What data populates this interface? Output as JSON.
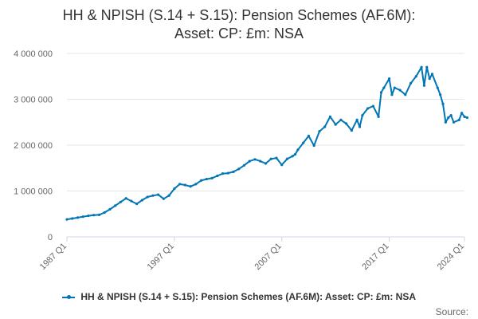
{
  "chart_data": {
    "type": "line",
    "title_line1": "HH & NPISH (S.14 + S.15): Pension Schemes (AF.6M):",
    "title_line2": "Asset: CP: £m: NSA",
    "legend_label": "HH & NPISH (S.14 + S.15): Pension Schemes (AF.6M): Asset: CP: £m: NSA",
    "source_label": "Source:",
    "ylim": [
      0,
      4000000
    ],
    "y_ticks": [
      {
        "value": 0,
        "label": "0"
      },
      {
        "value": 1000000,
        "label": "1 000 000"
      },
      {
        "value": 2000000,
        "label": "2 000 000"
      },
      {
        "value": 3000000,
        "label": "3 000 000"
      },
      {
        "value": 4000000,
        "label": "4 000 000"
      }
    ],
    "x_ticks": [
      {
        "value": 1987.0,
        "label": "1987 Q1"
      },
      {
        "value": 1997.0,
        "label": "1997 Q1"
      },
      {
        "value": 2007.0,
        "label": "2007 Q1"
      },
      {
        "value": 2017.0,
        "label": "2017 Q1"
      },
      {
        "value": 2024.0,
        "label": "2024 Q1"
      }
    ],
    "xlim": [
      1987.0,
      2024.0
    ],
    "grid": true,
    "legend_position": "bottom",
    "color": "#0076b6",
    "series": [
      {
        "name": "HH & NPISH (S.14 + S.15): Pension Schemes (AF.6M): Asset: CP: £m: NSA",
        "x": [
          1987.0,
          1987.5,
          1988.0,
          1988.5,
          1989.0,
          1989.5,
          1990.0,
          1990.5,
          1991.0,
          1991.5,
          1992.0,
          1992.5,
          1993.0,
          1993.5,
          1994.0,
          1994.5,
          1995.0,
          1995.5,
          1996.0,
          1996.5,
          1997.0,
          1997.5,
          1998.0,
          1998.5,
          1999.0,
          1999.5,
          2000.0,
          2000.5,
          2001.0,
          2001.5,
          2002.0,
          2002.5,
          2003.0,
          2003.5,
          2004.0,
          2004.5,
          2005.0,
          2005.5,
          2006.0,
          2006.5,
          2007.0,
          2007.5,
          2008.0,
          2008.25,
          2008.5,
          2009.0,
          2009.5,
          2010.0,
          2010.5,
          2011.0,
          2011.5,
          2012.0,
          2012.5,
          2013.0,
          2013.5,
          2014.0,
          2014.25,
          2014.5,
          2015.0,
          2015.5,
          2016.0,
          2016.25,
          2016.5,
          2017.0,
          2017.25,
          2017.5,
          2018.0,
          2018.5,
          2019.0,
          2019.5,
          2020.0,
          2020.25,
          2020.5,
          2020.75,
          2021.0,
          2021.5,
          2021.75,
          2022.0,
          2022.25,
          2022.5,
          2022.75,
          2023.0,
          2023.5,
          2023.75,
          2024.0,
          2024.25
        ],
        "values": [
          380000,
          400000,
          420000,
          440000,
          460000,
          475000,
          480000,
          530000,
          600000,
          680000,
          760000,
          840000,
          780000,
          720000,
          800000,
          870000,
          900000,
          920000,
          830000,
          900000,
          1050000,
          1150000,
          1130000,
          1100000,
          1150000,
          1230000,
          1260000,
          1280000,
          1330000,
          1380000,
          1390000,
          1420000,
          1480000,
          1560000,
          1650000,
          1690000,
          1650000,
          1600000,
          1700000,
          1720000,
          1570000,
          1700000,
          1760000,
          1800000,
          1900000,
          2050000,
          2200000,
          1990000,
          2300000,
          2400000,
          2620000,
          2450000,
          2550000,
          2470000,
          2320000,
          2550000,
          2400000,
          2650000,
          2800000,
          2850000,
          2620000,
          3150000,
          3250000,
          3450000,
          3100000,
          3250000,
          3200000,
          3100000,
          3350000,
          3500000,
          3700000,
          3300000,
          3700000,
          3450000,
          3550000,
          3250000,
          3100000,
          2900000,
          2500000,
          2600000,
          2650000,
          2500000,
          2550000,
          2700000,
          2620000,
          2600000
        ]
      }
    ]
  }
}
